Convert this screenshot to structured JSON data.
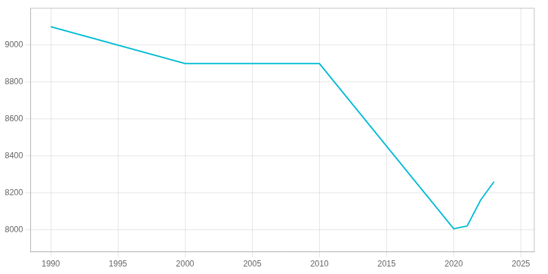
{
  "chart_data": {
    "type": "line",
    "x": [
      1990,
      2000,
      2010,
      2020,
      2021,
      2022,
      2023
    ],
    "values": [
      9100,
      8900,
      8900,
      8005,
      8020,
      8160,
      8260
    ],
    "color": "#00BCD4",
    "xlim": [
      1988.5,
      2026
    ],
    "ylim": [
      7880,
      9200
    ],
    "xticks": [
      1990,
      1995,
      2000,
      2005,
      2010,
      2015,
      2020,
      2025
    ],
    "yticks": [
      8000,
      8200,
      8400,
      8600,
      8800,
      9000
    ],
    "grid": true
  }
}
